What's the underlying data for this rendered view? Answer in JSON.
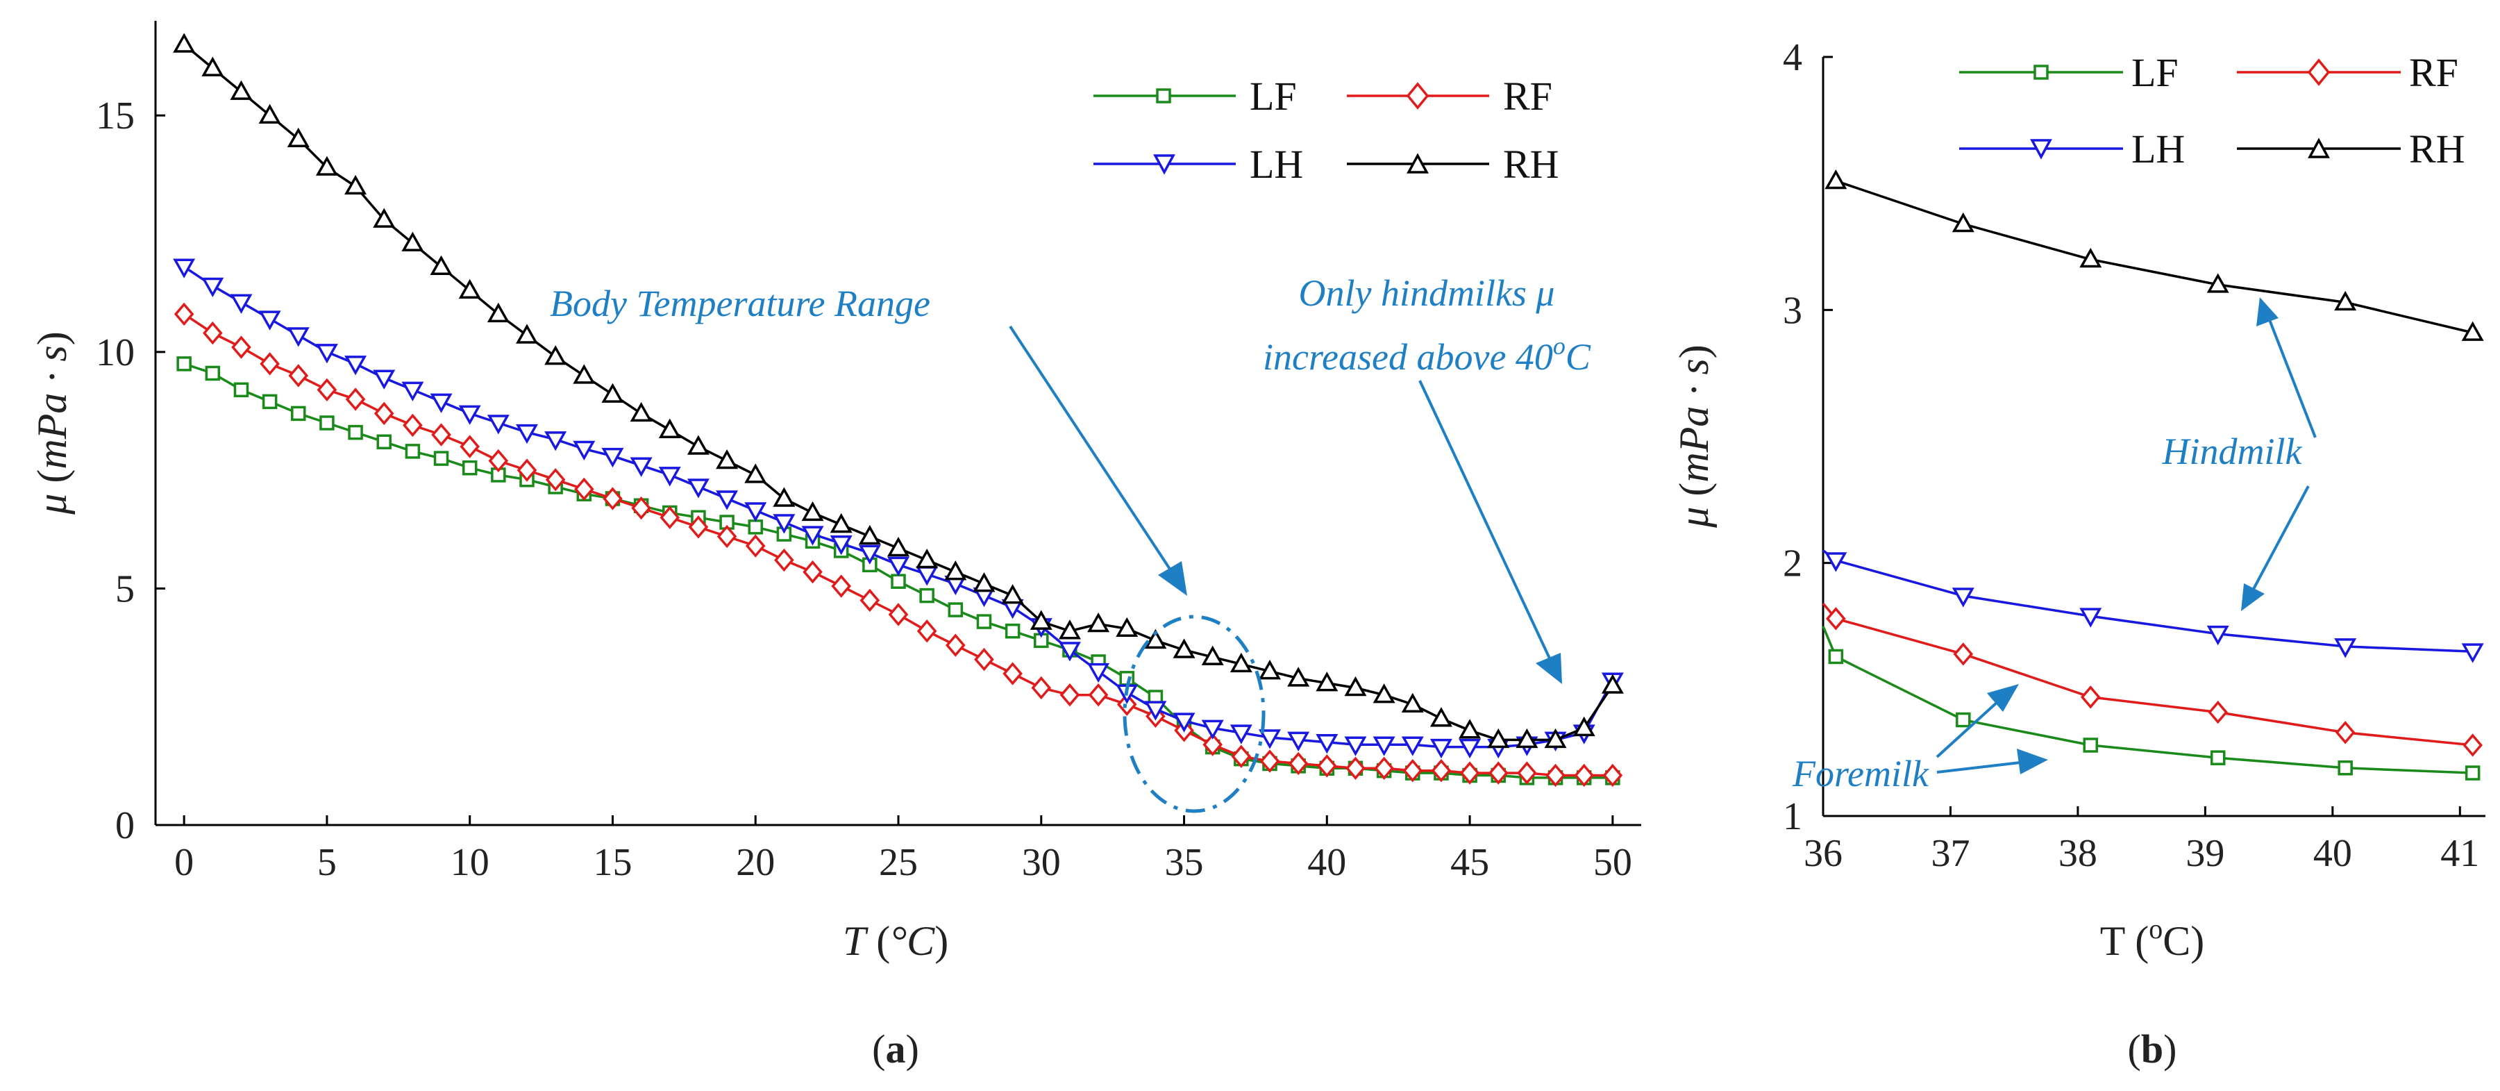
{
  "chart_data": [
    {
      "id": "a",
      "type": "line",
      "caption": "a",
      "xlabel": "T",
      "xunit": "°C",
      "ylabel": "μ",
      "yunit": "mPa · s",
      "xlim": [
        -1,
        51
      ],
      "ylim": [
        0,
        17
      ],
      "xticks": [
        0,
        5,
        10,
        15,
        20,
        25,
        30,
        35,
        40,
        45,
        50
      ],
      "yticks": [
        0,
        5,
        10,
        15
      ],
      "legend_position": "top-right",
      "series": [
        {
          "name": "LF",
          "color": "#1a8a1a",
          "marker": "square",
          "x": [
            0,
            1,
            2,
            3,
            4,
            5,
            6,
            7,
            8,
            9,
            10,
            11,
            12,
            13,
            14,
            15,
            16,
            17,
            18,
            19,
            20,
            21,
            22,
            23,
            24,
            25,
            26,
            27,
            28,
            29,
            30,
            31,
            32,
            33,
            34,
            35,
            36,
            37,
            38,
            39,
            40,
            41,
            42,
            43,
            44,
            45,
            46,
            47,
            48,
            49,
            50
          ],
          "y": [
            9.75,
            9.55,
            9.2,
            8.95,
            8.7,
            8.5,
            8.3,
            8.1,
            7.9,
            7.75,
            7.55,
            7.4,
            7.3,
            7.15,
            7.0,
            6.9,
            6.75,
            6.6,
            6.5,
            6.4,
            6.3,
            6.15,
            6.0,
            5.8,
            5.5,
            5.15,
            4.85,
            4.55,
            4.3,
            4.1,
            3.9,
            3.7,
            3.45,
            3.1,
            2.7,
            2.1,
            1.65,
            1.4,
            1.3,
            1.25,
            1.2,
            1.2,
            1.15,
            1.1,
            1.1,
            1.05,
            1.05,
            1.0,
            1.0,
            1.0,
            1.0
          ]
        },
        {
          "name": "RF",
          "color": "#e11a1a",
          "marker": "diamond",
          "x": [
            0,
            1,
            2,
            3,
            4,
            5,
            6,
            7,
            8,
            9,
            10,
            11,
            12,
            13,
            14,
            15,
            16,
            17,
            18,
            19,
            20,
            21,
            22,
            23,
            24,
            25,
            26,
            27,
            28,
            29,
            30,
            31,
            32,
            33,
            34,
            35,
            36,
            37,
            38,
            39,
            40,
            41,
            42,
            43,
            44,
            45,
            46,
            47,
            48,
            49,
            50
          ],
          "y": [
            10.8,
            10.4,
            10.1,
            9.75,
            9.5,
            9.2,
            9.0,
            8.7,
            8.45,
            8.25,
            8.0,
            7.7,
            7.5,
            7.3,
            7.1,
            6.9,
            6.7,
            6.5,
            6.3,
            6.1,
            5.9,
            5.6,
            5.35,
            5.05,
            4.75,
            4.45,
            4.1,
            3.8,
            3.5,
            3.2,
            2.9,
            2.75,
            2.75,
            2.55,
            2.3,
            2.0,
            1.7,
            1.45,
            1.35,
            1.3,
            1.25,
            1.2,
            1.2,
            1.15,
            1.15,
            1.1,
            1.1,
            1.1,
            1.05,
            1.05,
            1.05
          ]
        },
        {
          "name": "LH",
          "color": "#1818e0",
          "marker": "triangle-down",
          "x": [
            0,
            1,
            2,
            3,
            4,
            5,
            6,
            7,
            8,
            9,
            10,
            11,
            12,
            13,
            14,
            15,
            16,
            17,
            18,
            19,
            20,
            21,
            22,
            23,
            24,
            25,
            26,
            27,
            28,
            29,
            30,
            31,
            32,
            33,
            34,
            35,
            36,
            37,
            38,
            39,
            40,
            41,
            42,
            43,
            44,
            45,
            46,
            47,
            48,
            49,
            50
          ],
          "y": [
            11.8,
            11.4,
            11.05,
            10.7,
            10.35,
            10.0,
            9.75,
            9.45,
            9.2,
            8.95,
            8.7,
            8.5,
            8.3,
            8.15,
            7.95,
            7.8,
            7.6,
            7.4,
            7.15,
            6.9,
            6.65,
            6.4,
            6.15,
            5.95,
            5.75,
            5.5,
            5.3,
            5.1,
            4.85,
            4.6,
            4.2,
            3.7,
            3.25,
            2.8,
            2.45,
            2.2,
            2.05,
            1.95,
            1.85,
            1.8,
            1.75,
            1.7,
            1.7,
            1.7,
            1.65,
            1.65,
            1.65,
            1.7,
            1.8,
            1.95,
            3.05
          ]
        },
        {
          "name": "RH",
          "color": "#000000",
          "marker": "triangle-up",
          "x": [
            0,
            1,
            2,
            3,
            4,
            5,
            6,
            7,
            8,
            9,
            10,
            11,
            12,
            13,
            14,
            15,
            16,
            17,
            18,
            19,
            20,
            21,
            22,
            23,
            24,
            25,
            26,
            27,
            28,
            29,
            30,
            31,
            32,
            33,
            34,
            35,
            36,
            37,
            38,
            39,
            40,
            41,
            42,
            43,
            44,
            45,
            46,
            47,
            48,
            49,
            50
          ],
          "y": [
            16.5,
            16.0,
            15.5,
            15.0,
            14.5,
            13.9,
            13.5,
            12.8,
            12.3,
            11.8,
            11.3,
            10.8,
            10.35,
            9.9,
            9.5,
            9.1,
            8.7,
            8.35,
            8.0,
            7.7,
            7.4,
            6.9,
            6.6,
            6.35,
            6.1,
            5.85,
            5.6,
            5.35,
            5.1,
            4.85,
            4.3,
            4.1,
            4.25,
            4.15,
            3.9,
            3.7,
            3.55,
            3.4,
            3.25,
            3.1,
            3.0,
            2.9,
            2.75,
            2.55,
            2.25,
            2.0,
            1.8,
            1.8,
            1.8,
            2.05,
            2.95
          ]
        }
      ],
      "annotations": [
        {
          "text": "Body Temperature Range"
        },
        {
          "line1": "Only hindmilks μ",
          "line2": "increased above 40",
          "sup": "o",
          "tail": "C"
        }
      ]
    },
    {
      "id": "b",
      "type": "line",
      "caption": "b",
      "xlabel": "T",
      "xunit_prefix": "(",
      "xunit_sup": "o",
      "xunit_tail": "C)",
      "ylabel": "μ",
      "yunit": "mPa · s",
      "xlim": [
        36,
        41.2
      ],
      "ylim": [
        1,
        4
      ],
      "xticks": [
        36,
        37,
        38,
        39,
        40,
        41
      ],
      "yticks": [
        1,
        2,
        3,
        4
      ],
      "legend_position": "top-right",
      "series": [
        {
          "name": "LF",
          "color": "#1a8a1a",
          "marker": "square",
          "x": [
            36,
            36.1,
            37.1,
            38.1,
            39.1,
            40.1,
            41.1
          ],
          "y": [
            1.75,
            1.63,
            1.38,
            1.28,
            1.23,
            1.19,
            1.17
          ]
        },
        {
          "name": "RF",
          "color": "#e11a1a",
          "marker": "diamond",
          "x": [
            36,
            36.1,
            37.1,
            38.1,
            39.1,
            40.1,
            41.1
          ],
          "y": [
            1.84,
            1.78,
            1.64,
            1.47,
            1.41,
            1.33,
            1.28
          ]
        },
        {
          "name": "LH",
          "color": "#1818e0",
          "marker": "triangle-down",
          "x": [
            36,
            36.1,
            37.1,
            38.1,
            39.1,
            40.1,
            41.1
          ],
          "y": [
            2.05,
            2.01,
            1.87,
            1.79,
            1.72,
            1.67,
            1.65
          ]
        },
        {
          "name": "RH",
          "color": "#000000",
          "marker": "triangle-up",
          "x": [
            36.1,
            37.1,
            38.1,
            39.1,
            40.1,
            41.1
          ],
          "y": [
            3.51,
            3.34,
            3.2,
            3.1,
            3.03,
            2.91
          ]
        }
      ],
      "annotations": [
        {
          "text": "Hindmilk"
        },
        {
          "text": "Foremilk"
        }
      ]
    }
  ],
  "colors": {
    "annotation": "#1f7fc4"
  }
}
